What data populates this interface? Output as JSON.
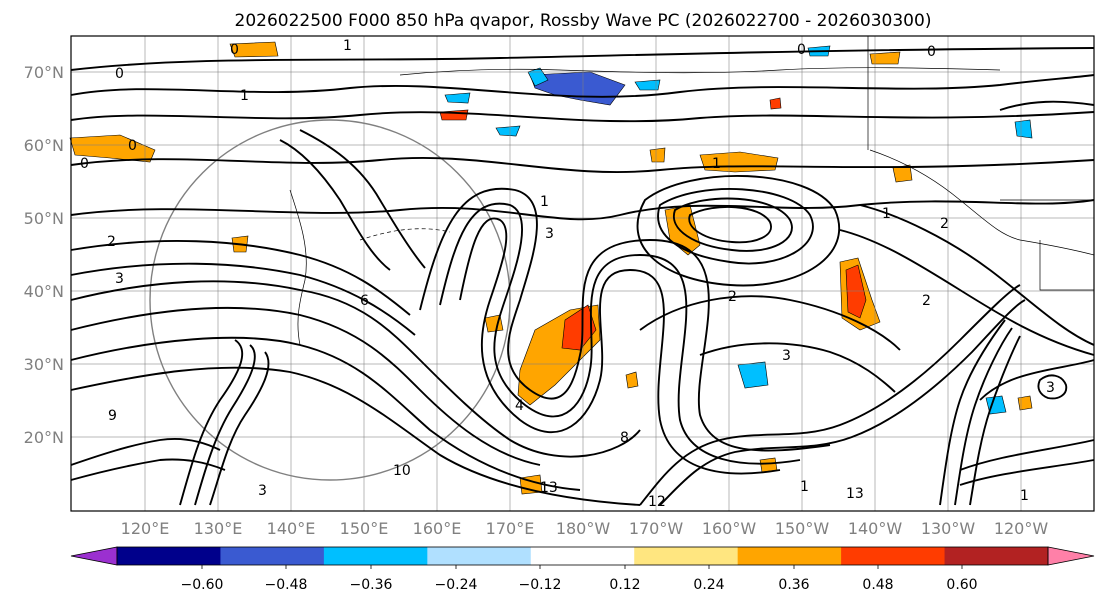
{
  "map": {
    "title": "2026022500 F000 850 hPa qvapor, Rossby Wave PC (2026022700 - 2026030300)",
    "lat_labels": [
      "70°N",
      "60°N",
      "50°N",
      "40°N",
      "30°N",
      "20°N"
    ],
    "lon_labels": [
      "120°E",
      "130°E",
      "140°E",
      "150°E",
      "160°E",
      "170°E",
      "180°W",
      "170°W",
      "160°W",
      "150°W",
      "140°W",
      "130°W",
      "120°W"
    ],
    "contour_labels": [
      "0",
      "0",
      "0",
      "0",
      "0",
      "0",
      "1",
      "1",
      "1",
      "1",
      "1",
      "1",
      "2",
      "2",
      "2",
      "2",
      "3",
      "3",
      "3",
      "3",
      "4",
      "6",
      "8",
      "9",
      "10",
      "12",
      "13",
      "13",
      "1",
      "3"
    ],
    "colorbar": {
      "ticks": [
        "−0.60",
        "−0.48",
        "−0.36",
        "−0.24",
        "−0.12",
        "0.12",
        "0.24",
        "0.36",
        "0.48",
        "0.60"
      ],
      "colors": [
        "#9b30d0",
        "#00008b",
        "#3a5ad1",
        "#00bfff",
        "#b0e0ff",
        "#ffffff",
        "#ffe680",
        "#ffa500",
        "#ff3c00",
        "#b22222",
        "#ff80a8"
      ]
    },
    "shading_colors": {
      "orange": "#ffa500",
      "red": "#ff3c00",
      "yellow": "#ffe680",
      "cyan": "#00bfff",
      "blue": "#3a5ad1",
      "lightblue": "#b0e0ff"
    }
  }
}
